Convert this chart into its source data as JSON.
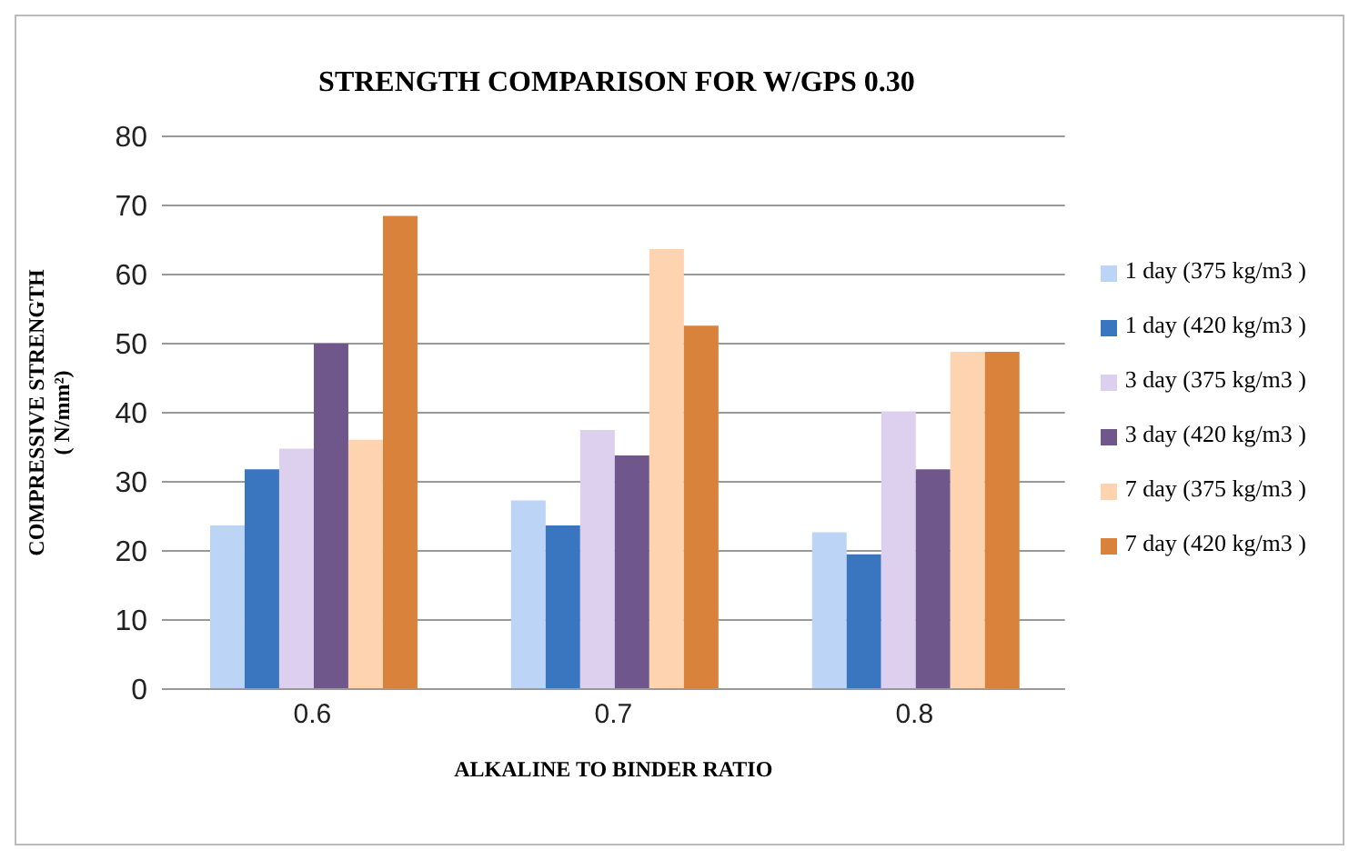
{
  "chart_data": {
    "type": "bar",
    "title": "STRENGTH  COMPARISON FOR W/GPS 0.30",
    "xlabel": "ALKALINE  TO BINDER RATIO",
    "ylabel": "COMPRESSIVE STRENGTH\n( N/mm²)",
    "categories": [
      "0.6",
      "0.7",
      "0.8"
    ],
    "series": [
      {
        "name": "1 day (375 kg/m3 )",
        "color": "#bcd4f6",
        "values": [
          23.7,
          27.3,
          22.7
        ]
      },
      {
        "name": "1 day (420 kg/m3 )",
        "color": "#3a75c0",
        "values": [
          31.8,
          23.7,
          19.5
        ]
      },
      {
        "name": "3 day (375 kg/m3 )",
        "color": "#ddd0ee",
        "values": [
          34.8,
          37.5,
          40.2
        ]
      },
      {
        "name": "3 day (420 kg/m3 )",
        "color": "#6f578c",
        "values": [
          50,
          33.8,
          31.8
        ]
      },
      {
        "name": "7 day (375 kg/m3 )",
        "color": "#fdd3b0",
        "values": [
          36.1,
          63.7,
          48.8
        ]
      },
      {
        "name": "7 day (420 kg/m3 )",
        "color": "#d9823b",
        "values": [
          68.5,
          52.6,
          48.8
        ]
      }
    ],
    "ylim": [
      0,
      80
    ],
    "yticks": [
      0,
      10,
      20,
      30,
      40,
      50,
      60,
      70,
      80
    ],
    "grid": "y",
    "legend": "right"
  }
}
